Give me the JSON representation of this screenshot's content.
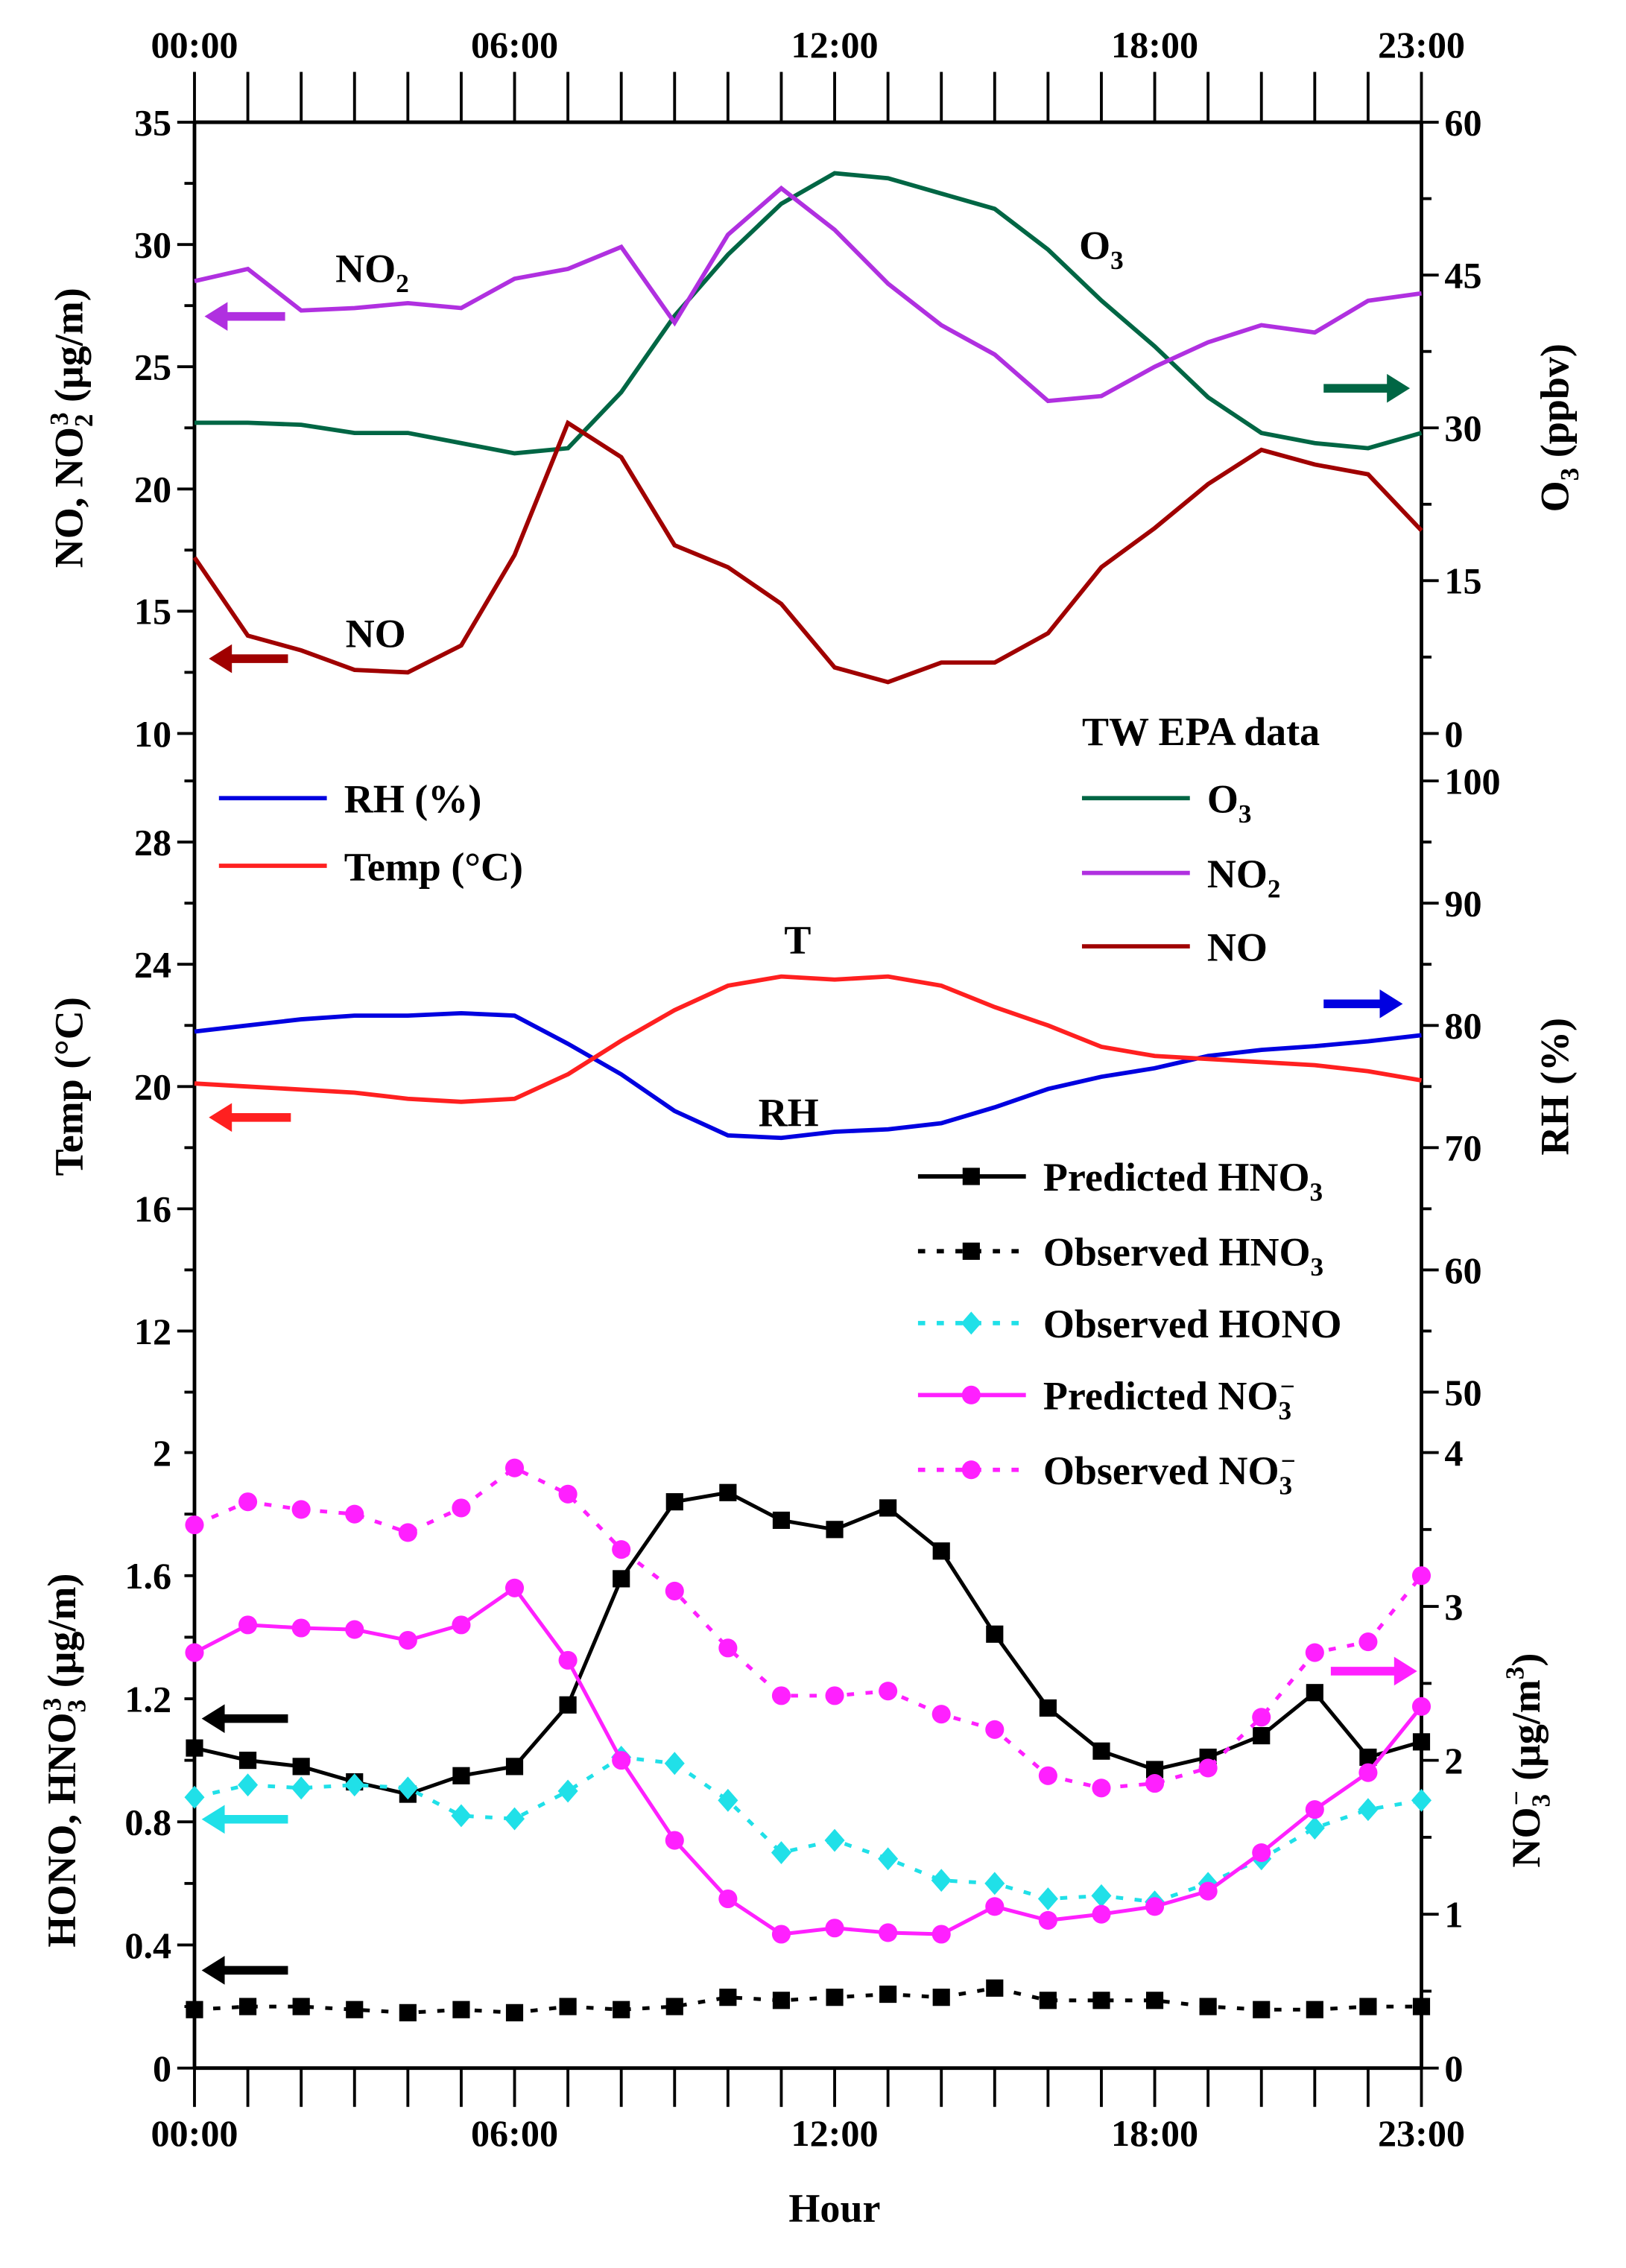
{
  "chart_data": [
    {
      "type": "line",
      "panel": "top",
      "x": [
        0,
        1,
        2,
        3,
        4,
        5,
        6,
        7,
        8,
        9,
        10,
        11,
        12,
        13,
        14,
        15,
        16,
        17,
        18,
        19,
        20,
        21,
        22,
        23
      ],
      "xtick_labels": [
        "00:00",
        "06:00",
        "12:00",
        "18:00",
        "23:00"
      ],
      "ylabel": {
        "main": "NO, NO",
        "sub": "2",
        "tail": " (μg/m",
        "sup": "3",
        "end": ")"
      },
      "y2label": {
        "main": "O",
        "sub": "3",
        "tail": " (ppbv)"
      },
      "ylim": [
        10,
        35
      ],
      "yticks": [
        10,
        15,
        20,
        25,
        30,
        35
      ],
      "y2lim": [
        0,
        60
      ],
      "y2ticks": [
        0,
        15,
        30,
        45,
        60
      ],
      "annotation": "TW EPA data",
      "series": [
        {
          "name": {
            "main": "O",
            "sub": "3"
          },
          "axis": "right",
          "color": "#006644",
          "values": [
            30.5,
            30.5,
            30.3,
            29.5,
            29.5,
            28.5,
            27.5,
            28,
            33.5,
            41,
            47,
            52,
            55,
            54.5,
            53,
            51.5,
            47.5,
            42.5,
            38,
            33,
            29.5,
            28.5,
            28,
            29.5
          ]
        },
        {
          "name": {
            "main": "NO",
            "sub": "2"
          },
          "axis": "left",
          "color": "#b030e0",
          "values": [
            28.5,
            29.0,
            27.3,
            27.4,
            27.6,
            27.4,
            28.6,
            29.0,
            29.9,
            26.8,
            30.4,
            32.3,
            30.6,
            28.4,
            26.7,
            25.5,
            23.6,
            23.8,
            25.0,
            26.0,
            26.7,
            26.4,
            27.7,
            28.0
          ]
        },
        {
          "name": {
            "main": "NO",
            "sub": ""
          },
          "axis": "left",
          "color": "#a00000",
          "values": [
            17.2,
            14.0,
            13.4,
            12.6,
            12.5,
            13.6,
            17.3,
            22.7,
            21.3,
            17.7,
            16.8,
            15.3,
            12.7,
            12.1,
            12.9,
            12.9,
            14.1,
            16.8,
            18.4,
            20.2,
            21.6,
            21.0,
            20.6,
            18.3
          ]
        }
      ],
      "inline_labels": [
        {
          "main": "NO",
          "sub": "2"
        },
        {
          "main": "NO",
          "sub": ""
        },
        {
          "main": "O",
          "sub": "3"
        }
      ]
    },
    {
      "type": "line",
      "panel": "middle",
      "ylabel": "Temp (°C)",
      "y2label": "RH (%)",
      "ylim": [
        10,
        30
      ],
      "yticks": [
        12,
        16,
        20,
        24,
        28
      ],
      "y2lim": [
        50,
        100
      ],
      "y2ticks": [
        50,
        60,
        70,
        80,
        90,
        100
      ],
      "series": [
        {
          "name": "RH (%)",
          "axis": "right",
          "color": "#0000e0",
          "values": [
            79.5,
            80,
            80.5,
            80.8,
            80.8,
            81,
            80.8,
            78.5,
            76,
            73,
            71,
            70.8,
            71.3,
            71.5,
            72,
            73.3,
            74.8,
            75.8,
            76.5,
            77.5,
            78,
            78.3,
            78.7,
            79.2
          ]
        },
        {
          "name": "Temp (°C)",
          "axis": "left",
          "color": "#ff2020",
          "values": [
            20.1,
            20.0,
            19.9,
            19.8,
            19.6,
            19.5,
            19.6,
            20.4,
            21.5,
            22.5,
            23.3,
            23.6,
            23.5,
            23.6,
            23.3,
            22.6,
            22.0,
            21.3,
            21.0,
            20.9,
            20.8,
            20.7,
            20.5,
            20.2
          ]
        }
      ],
      "inline_labels": [
        "T",
        "RH"
      ]
    },
    {
      "type": "line",
      "panel": "bottom",
      "xlabel": "Hour",
      "ylabel": {
        "main": "HONO, HNO",
        "sub": "3",
        "tail": "  (μg/m",
        "sup": "3",
        "end": ")"
      },
      "y2label": {
        "main": "NO",
        "sub": "3",
        "sup": "−",
        "tail": "  (μg/m",
        "sup2": "3",
        "end": ")"
      },
      "ylim": [
        0,
        2
      ],
      "yticks": [
        0,
        0.4,
        0.8,
        1.2,
        1.6,
        2
      ],
      "y2lim": [
        0,
        4
      ],
      "y2ticks": [
        0,
        1,
        2,
        3,
        4
      ],
      "series": [
        {
          "name": {
            "main": "Predicted HNO",
            "sub": "3",
            "sup": ""
          },
          "axis": "left",
          "color": "#000000",
          "dash": false,
          "marker": "square",
          "values": [
            1.04,
            1.0,
            0.98,
            0.93,
            0.89,
            0.95,
            0.98,
            1.18,
            1.59,
            1.84,
            1.87,
            1.78,
            1.75,
            1.82,
            1.68,
            1.41,
            1.17,
            1.03,
            0.97,
            1.01,
            1.08,
            1.22,
            1.01,
            1.06
          ]
        },
        {
          "name": {
            "main": "Observed HNO",
            "sub": "3",
            "sup": ""
          },
          "axis": "left",
          "color": "#000000",
          "dash": true,
          "marker": "square",
          "values": [
            0.19,
            0.2,
            0.2,
            0.19,
            0.18,
            0.19,
            0.18,
            0.2,
            0.19,
            0.2,
            0.23,
            0.22,
            0.23,
            0.24,
            0.23,
            0.26,
            0.22,
            0.22,
            0.22,
            0.2,
            0.19,
            0.19,
            0.2,
            0.2
          ]
        },
        {
          "name": {
            "main": "Observed HONO",
            "sub": "",
            "sup": ""
          },
          "axis": "left",
          "color": "#20e0e8",
          "dash": true,
          "marker": "diamond",
          "values": [
            0.88,
            0.92,
            0.91,
            0.92,
            0.91,
            0.82,
            0.81,
            0.9,
            1.01,
            0.99,
            0.87,
            0.7,
            0.74,
            0.68,
            0.61,
            0.6,
            0.55,
            0.56,
            0.54,
            0.6,
            0.68,
            0.78,
            0.84,
            0.87
          ]
        },
        {
          "name": {
            "main": "Predicted NO",
            "sub": "3",
            "sup": "−"
          },
          "axis": "right",
          "color": "#ff20ff",
          "dash": false,
          "marker": "circle",
          "values": [
            2.7,
            2.88,
            2.86,
            2.85,
            2.78,
            2.88,
            3.12,
            2.65,
            2.0,
            1.48,
            1.1,
            0.87,
            0.91,
            0.88,
            0.87,
            1.05,
            0.96,
            1.0,
            1.05,
            1.15,
            1.4,
            1.68,
            1.92,
            2.35
          ]
        },
        {
          "name": {
            "main": "Observed NO",
            "sub": "3",
            "sup": "−"
          },
          "axis": "right",
          "color": "#ff20ff",
          "dash": true,
          "marker": "circle",
          "values": [
            3.53,
            3.68,
            3.63,
            3.6,
            3.48,
            3.64,
            3.9,
            3.73,
            3.37,
            3.1,
            2.73,
            2.42,
            2.42,
            2.45,
            2.3,
            2.2,
            1.9,
            1.82,
            1.85,
            1.95,
            2.28,
            2.7,
            2.77,
            3.2
          ]
        }
      ]
    }
  ]
}
